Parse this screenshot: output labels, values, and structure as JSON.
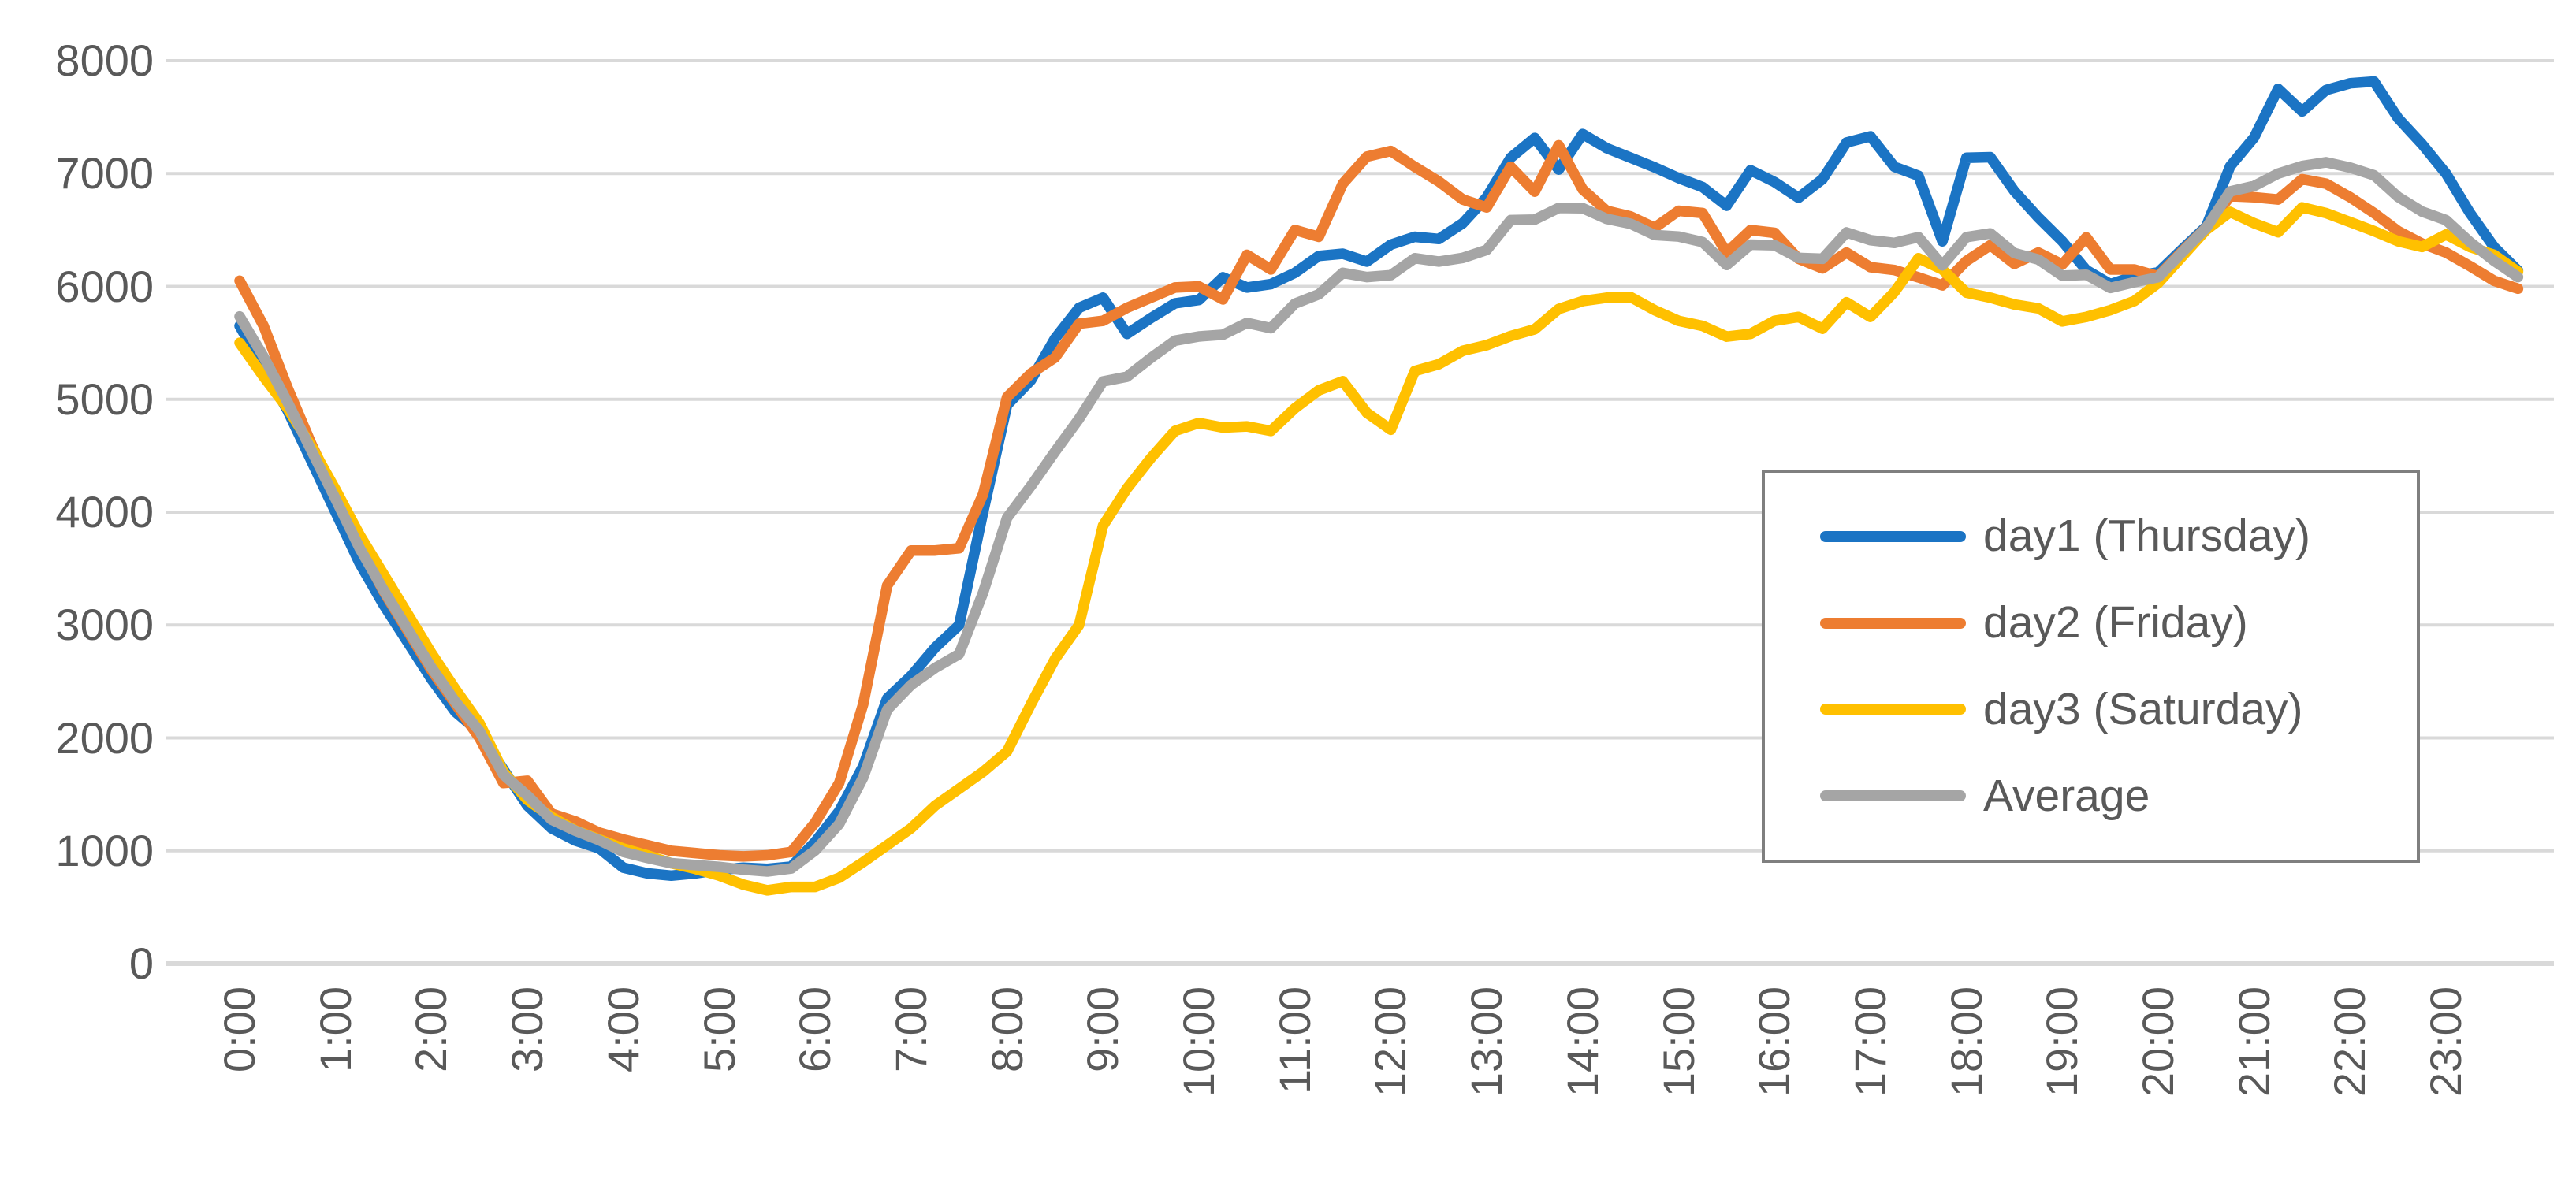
{
  "chart_data": {
    "type": "line",
    "title": "",
    "xlabel": "",
    "ylabel": "",
    "ylim": [
      0,
      8000
    ],
    "ytick_step": 1000,
    "y_tick_labels": [
      "0",
      "1000",
      "2000",
      "3000",
      "4000",
      "5000",
      "6000",
      "7000",
      "8000"
    ],
    "x_tick_labels": [
      "0:00",
      "1:00",
      "2:00",
      "3:00",
      "4:00",
      "5:00",
      "6:00",
      "7:00",
      "8:00",
      "9:00",
      "10:00",
      "11:00",
      "12:00",
      "13:00",
      "14:00",
      "15:00",
      "16:00",
      "17:00",
      "18:00",
      "19:00",
      "20:00",
      "21:00",
      "22:00",
      "23:00"
    ],
    "x_start": "0:00",
    "x_interval_minutes": 15,
    "points_per_series": 96,
    "grid": true,
    "gridline_color": "#D9D9D9",
    "axis_text_color": "#595959",
    "legend_position": "right-middle-box",
    "series": [
      {
        "name": "day1 (Thursday)",
        "color": "#1B74C4",
        "values": [
          5650,
          5280,
          4900,
          4450,
          4000,
          3550,
          3180,
          2850,
          2520,
          2230,
          2050,
          1720,
          1400,
          1200,
          1090,
          1020,
          850,
          800,
          780,
          800,
          830,
          850,
          840,
          860,
          1080,
          1350,
          1750,
          2350,
          2550,
          2800,
          3000,
          4000,
          4950,
          5170,
          5540,
          5810,
          5900,
          5580,
          5720,
          5850,
          5880,
          6080,
          5990,
          6020,
          6120,
          6270,
          6290,
          6220,
          6370,
          6440,
          6420,
          6560,
          6790,
          7140,
          7315,
          7035,
          7350,
          7225,
          7140,
          7055,
          6960,
          6880,
          6715,
          7030,
          6925,
          6785,
          6950,
          7275,
          7330,
          7060,
          6980,
          6400,
          7140,
          7145,
          6845,
          6610,
          6400,
          6145,
          6020,
          6090,
          6125,
          6330,
          6530,
          7065,
          7320,
          7750,
          7550,
          7740,
          7800,
          7815,
          7490,
          7260,
          7000,
          6650,
          6350,
          6140
        ]
      },
      {
        "name": "day2 (Friday)",
        "color": "#ED7D31",
        "values": [
          6050,
          5650,
          5100,
          4600,
          4150,
          3700,
          3300,
          2950,
          2600,
          2300,
          2000,
          1600,
          1620,
          1330,
          1260,
          1160,
          1100,
          1050,
          1000,
          980,
          960,
          950,
          960,
          990,
          1250,
          1600,
          2300,
          3350,
          3660,
          3660,
          3680,
          4160,
          5020,
          5230,
          5370,
          5670,
          5695,
          5810,
          5900,
          5990,
          6000,
          5885,
          6280,
          6150,
          6500,
          6440,
          6910,
          7150,
          7200,
          7060,
          6930,
          6770,
          6700,
          7060,
          6840,
          7250,
          6860,
          6670,
          6620,
          6520,
          6670,
          6650,
          6300,
          6500,
          6475,
          6245,
          6160,
          6300,
          6170,
          6145,
          6080,
          6010,
          6225,
          6365,
          6200,
          6300,
          6195,
          6435,
          6150,
          6150,
          6090,
          6310,
          6520,
          6800,
          6790,
          6770,
          6950,
          6910,
          6790,
          6650,
          6490,
          6380,
          6300,
          6180,
          6050,
          5980
        ]
      },
      {
        "name": "day3 (Saturday)",
        "color": "#FFC000",
        "values": [
          5500,
          5200,
          4920,
          4580,
          4200,
          3800,
          3450,
          3100,
          2750,
          2430,
          2130,
          1700,
          1450,
          1300,
          1180,
          1100,
          1020,
          960,
          890,
          840,
          780,
          700,
          650,
          680,
          680,
          760,
          900,
          1050,
          1200,
          1400,
          1550,
          1700,
          1880,
          2300,
          2700,
          3000,
          3880,
          4210,
          4480,
          4720,
          4790,
          4750,
          4760,
          4720,
          4920,
          5080,
          5160,
          4880,
          4730,
          5250,
          5310,
          5430,
          5480,
          5560,
          5620,
          5800,
          5870,
          5900,
          5905,
          5790,
          5695,
          5650,
          5555,
          5580,
          5695,
          5730,
          5625,
          5860,
          5730,
          5950,
          6250,
          6150,
          5945,
          5900,
          5840,
          5805,
          5690,
          5730,
          5790,
          5870,
          6030,
          6265,
          6500,
          6660,
          6560,
          6480,
          6700,
          6650,
          6570,
          6490,
          6400,
          6350,
          6460,
          6350,
          6280,
          6130
        ]
      },
      {
        "name": "Average",
        "color": "#A5A5A5",
        "values": [
          5733,
          5377,
          4973,
          4543,
          4117,
          3683,
          3310,
          2967,
          2623,
          2320,
          2060,
          1673,
          1490,
          1277,
          1177,
          1093,
          990,
          937,
          890,
          873,
          857,
          833,
          817,
          843,
          1003,
          1237,
          1650,
          2250,
          2470,
          2620,
          2743,
          3287,
          3950,
          4233,
          4537,
          4827,
          5158,
          5200,
          5367,
          5520,
          5557,
          5572,
          5677,
          5630,
          5847,
          5930,
          6120,
          6083,
          6100,
          6250,
          6220,
          6253,
          6323,
          6587,
          6592,
          6695,
          6693,
          6598,
          6555,
          6455,
          6442,
          6393,
          6190,
          6370,
          6365,
          6253,
          6245,
          6478,
          6410,
          6385,
          6437,
          6187,
          6437,
          6470,
          6295,
          6238,
          6095,
          6103,
          5987,
          6037,
          6082,
          6302,
          6517,
          6842,
          6890,
          7000,
          7067,
          7100,
          7053,
          6985,
          6793,
          6663,
          6587,
          6393,
          6227,
          6083
        ]
      }
    ]
  },
  "legend": {
    "items": [
      {
        "label": "day1 (Thursday)",
        "color": "#1B74C4"
      },
      {
        "label": "day2 (Friday)",
        "color": "#ED7D31"
      },
      {
        "label": "day3 (Saturday)",
        "color": "#FFC000"
      },
      {
        "label": "Average",
        "color": "#A5A5A5"
      }
    ],
    "border_color": "#7F7F7F"
  }
}
